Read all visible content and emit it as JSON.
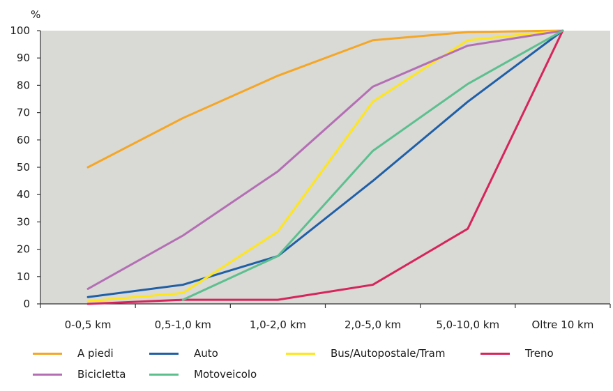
{
  "chart_data": {
    "type": "line",
    "ylabel": "%",
    "xlabel": "",
    "ylim": [
      0,
      100
    ],
    "yticks": [
      "0",
      "10",
      "20",
      "30",
      "40",
      "50",
      "60",
      "70",
      "80",
      "90",
      "100"
    ],
    "categories": [
      "0-0,5 km",
      "0,5-1,0 km",
      "1,0-2,0 km",
      "2,0-5,0 km",
      "5,0-10,0 km",
      "Oltre 10 km"
    ],
    "grid": false,
    "legend_position": "bottom",
    "background_color": "#d9d9d6",
    "series": [
      {
        "name": "A piedi",
        "color": "#f5a623",
        "values": [
          50,
          68,
          83.5,
          96.5,
          99.5,
          100
        ]
      },
      {
        "name": "Auto",
        "color": "#1f5fa6",
        "values": [
          2.5,
          7,
          17.5,
          45,
          74,
          100
        ]
      },
      {
        "name": "Bus/Autopostale/Tram",
        "color": "#ffe619",
        "values": [
          1,
          4,
          26.5,
          74,
          96.5,
          100
        ]
      },
      {
        "name": "Treno",
        "color": "#d6245c",
        "values": [
          0,
          1.5,
          1.5,
          7,
          27.5,
          100
        ]
      },
      {
        "name": "Bicicletta",
        "color": "#b46fb4",
        "values": [
          5.5,
          25,
          48.5,
          79.5,
          94.5,
          100
        ]
      },
      {
        "name": "Motoveicolo",
        "color": "#5cc08e",
        "values": [
          null,
          1.5,
          17.5,
          56,
          80.5,
          100
        ]
      }
    ]
  }
}
